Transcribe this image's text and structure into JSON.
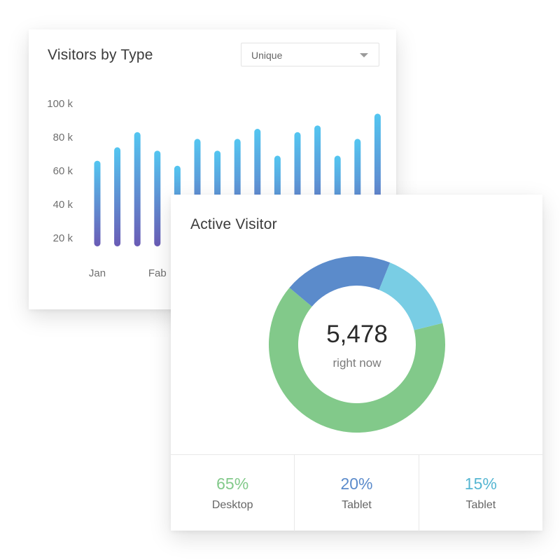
{
  "visitors_card": {
    "title": "Visitors by Type",
    "dropdown": {
      "selected": "Unique",
      "icon": "chevron-down-icon"
    }
  },
  "active_card": {
    "title": "Active Visitor",
    "center_value": "5,478",
    "center_label": "right now",
    "stats": [
      {
        "value": "65%",
        "label": "Desktop",
        "color": "#82c98a"
      },
      {
        "value": "20%",
        "label": "Tablet",
        "color": "#5b8bcb"
      },
      {
        "value": "15%",
        "label": "Tablet",
        "color": "#56b6d2"
      }
    ]
  },
  "chart_data": [
    {
      "type": "bar",
      "title": "Visitors by Type",
      "y_tick_labels": [
        "100 k",
        "80 k",
        "60 k",
        "40 k",
        "20 k"
      ],
      "y_ticks": [
        100,
        80,
        60,
        40,
        20
      ],
      "x_tick_labels": [
        "Jan",
        "Fab"
      ],
      "x_tick_positions": [
        0,
        3
      ],
      "values": [
        66,
        74,
        83,
        72,
        63,
        79,
        72,
        79,
        85,
        69,
        83,
        87,
        69,
        79,
        94
      ],
      "ylim": [
        15,
        100
      ],
      "gradient": {
        "top": "#53c6f1",
        "bottom": "#6a5bb5"
      }
    },
    {
      "type": "pie",
      "labels": [
        "Desktop",
        "Tablet",
        "Tablet"
      ],
      "values": [
        65,
        20,
        15
      ],
      "colors": [
        "#82c98a",
        "#5b8bcb",
        "#79cde4"
      ],
      "center_value": "5,478",
      "center_label": "right now"
    }
  ]
}
